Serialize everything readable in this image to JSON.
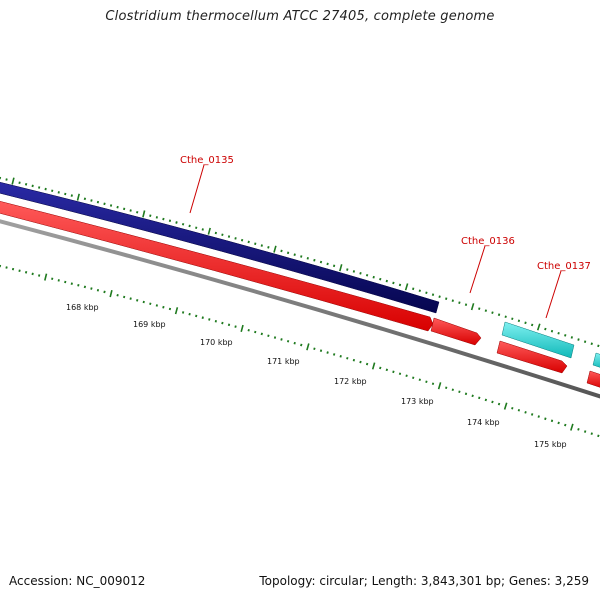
{
  "header": {
    "title": "Clostridium thermocellum ATCC 27405, complete genome"
  },
  "footer": {
    "accession": "Accession: NC_009012",
    "summary": "Topology: circular; Length: 3,843,301 bp; Genes: 3,259"
  },
  "colors": {
    "forward_gene": "#0c0c80",
    "reverse_gene": "#ff0000",
    "rna_gene": "#1ad1d1",
    "backbone": "#777777",
    "tick": "#1f7a1f",
    "gene_label": "#cc0000"
  },
  "genes": [
    {
      "id": "Cthe_0135",
      "label": "Cthe_0135",
      "strand": "forward",
      "type": "cds"
    },
    {
      "id": "Cthe_0136",
      "label": "Cthe_0136",
      "strand": "reverse",
      "type": "cds"
    },
    {
      "id": "Cthe_0137",
      "label": "Cthe_0137",
      "strand": "forward",
      "type": "rna"
    }
  ],
  "scale_labels": [
    "168 kbp",
    "169 kbp",
    "170 kbp",
    "171 kbp",
    "172 kbp",
    "173 kbp",
    "174 kbp",
    "175 kbp"
  ]
}
